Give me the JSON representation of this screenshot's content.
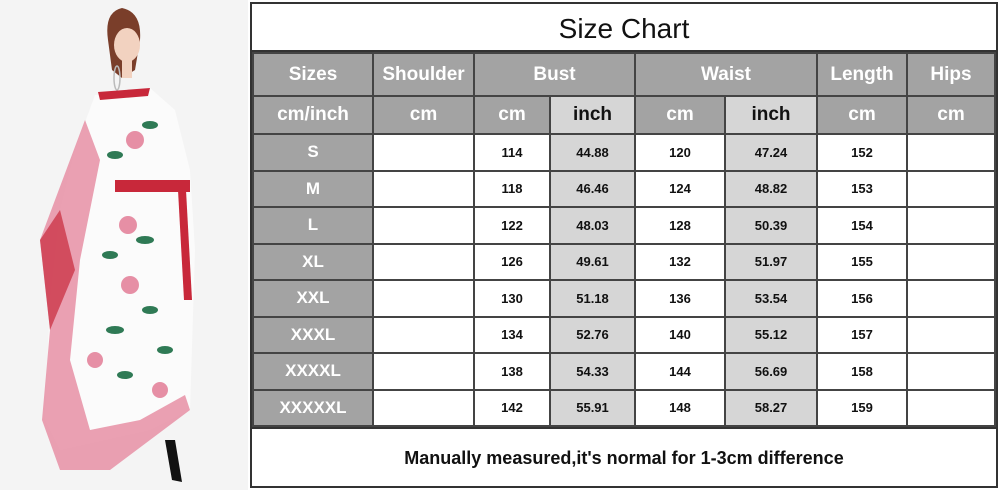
{
  "title": "Size Chart",
  "headers": {
    "sizes": "Sizes",
    "shoulder": "Shoulder",
    "bust": "Bust",
    "waist": "Waist",
    "length": "Length",
    "hips": "Hips"
  },
  "units": {
    "sizes": "cm/inch",
    "shoulder": "cm",
    "bust_cm": "cm",
    "bust_inch": "inch",
    "waist_cm": "cm",
    "waist_inch": "inch",
    "length": "cm",
    "hips": "cm"
  },
  "rows": [
    {
      "size": "S",
      "shoulder": "",
      "bust_cm": "114",
      "bust_inch": "44.88",
      "waist_cm": "120",
      "waist_inch": "47.24",
      "length": "152",
      "hips": ""
    },
    {
      "size": "M",
      "shoulder": "",
      "bust_cm": "118",
      "bust_inch": "46.46",
      "waist_cm": "124",
      "waist_inch": "48.82",
      "length": "153",
      "hips": ""
    },
    {
      "size": "L",
      "shoulder": "",
      "bust_cm": "122",
      "bust_inch": "48.03",
      "waist_cm": "128",
      "waist_inch": "50.39",
      "length": "154",
      "hips": ""
    },
    {
      "size": "XL",
      "shoulder": "",
      "bust_cm": "126",
      "bust_inch": "49.61",
      "waist_cm": "132",
      "waist_inch": "51.97",
      "length": "155",
      "hips": ""
    },
    {
      "size": "XXL",
      "shoulder": "",
      "bust_cm": "130",
      "bust_inch": "51.18",
      "waist_cm": "136",
      "waist_inch": "53.54",
      "length": "156",
      "hips": ""
    },
    {
      "size": "XXXL",
      "shoulder": "",
      "bust_cm": "134",
      "bust_inch": "52.76",
      "waist_cm": "140",
      "waist_inch": "55.12",
      "length": "157",
      "hips": ""
    },
    {
      "size": "XXXXL",
      "shoulder": "",
      "bust_cm": "138",
      "bust_inch": "54.33",
      "waist_cm": "144",
      "waist_inch": "56.69",
      "length": "158",
      "hips": ""
    },
    {
      "size": "XXXXXL",
      "shoulder": "",
      "bust_cm": "142",
      "bust_inch": "55.91",
      "waist_cm": "148",
      "waist_inch": "58.27",
      "length": "159",
      "hips": ""
    }
  ],
  "note": "Manually measured,it's normal for 1-3cm difference",
  "colors": {
    "header_gray": "#a3a3a3",
    "inch_gray": "#d6d6d6",
    "dress_red": "#c8283a",
    "rose_pink": "#e68fa5",
    "leaf_green": "#2f7a55"
  }
}
